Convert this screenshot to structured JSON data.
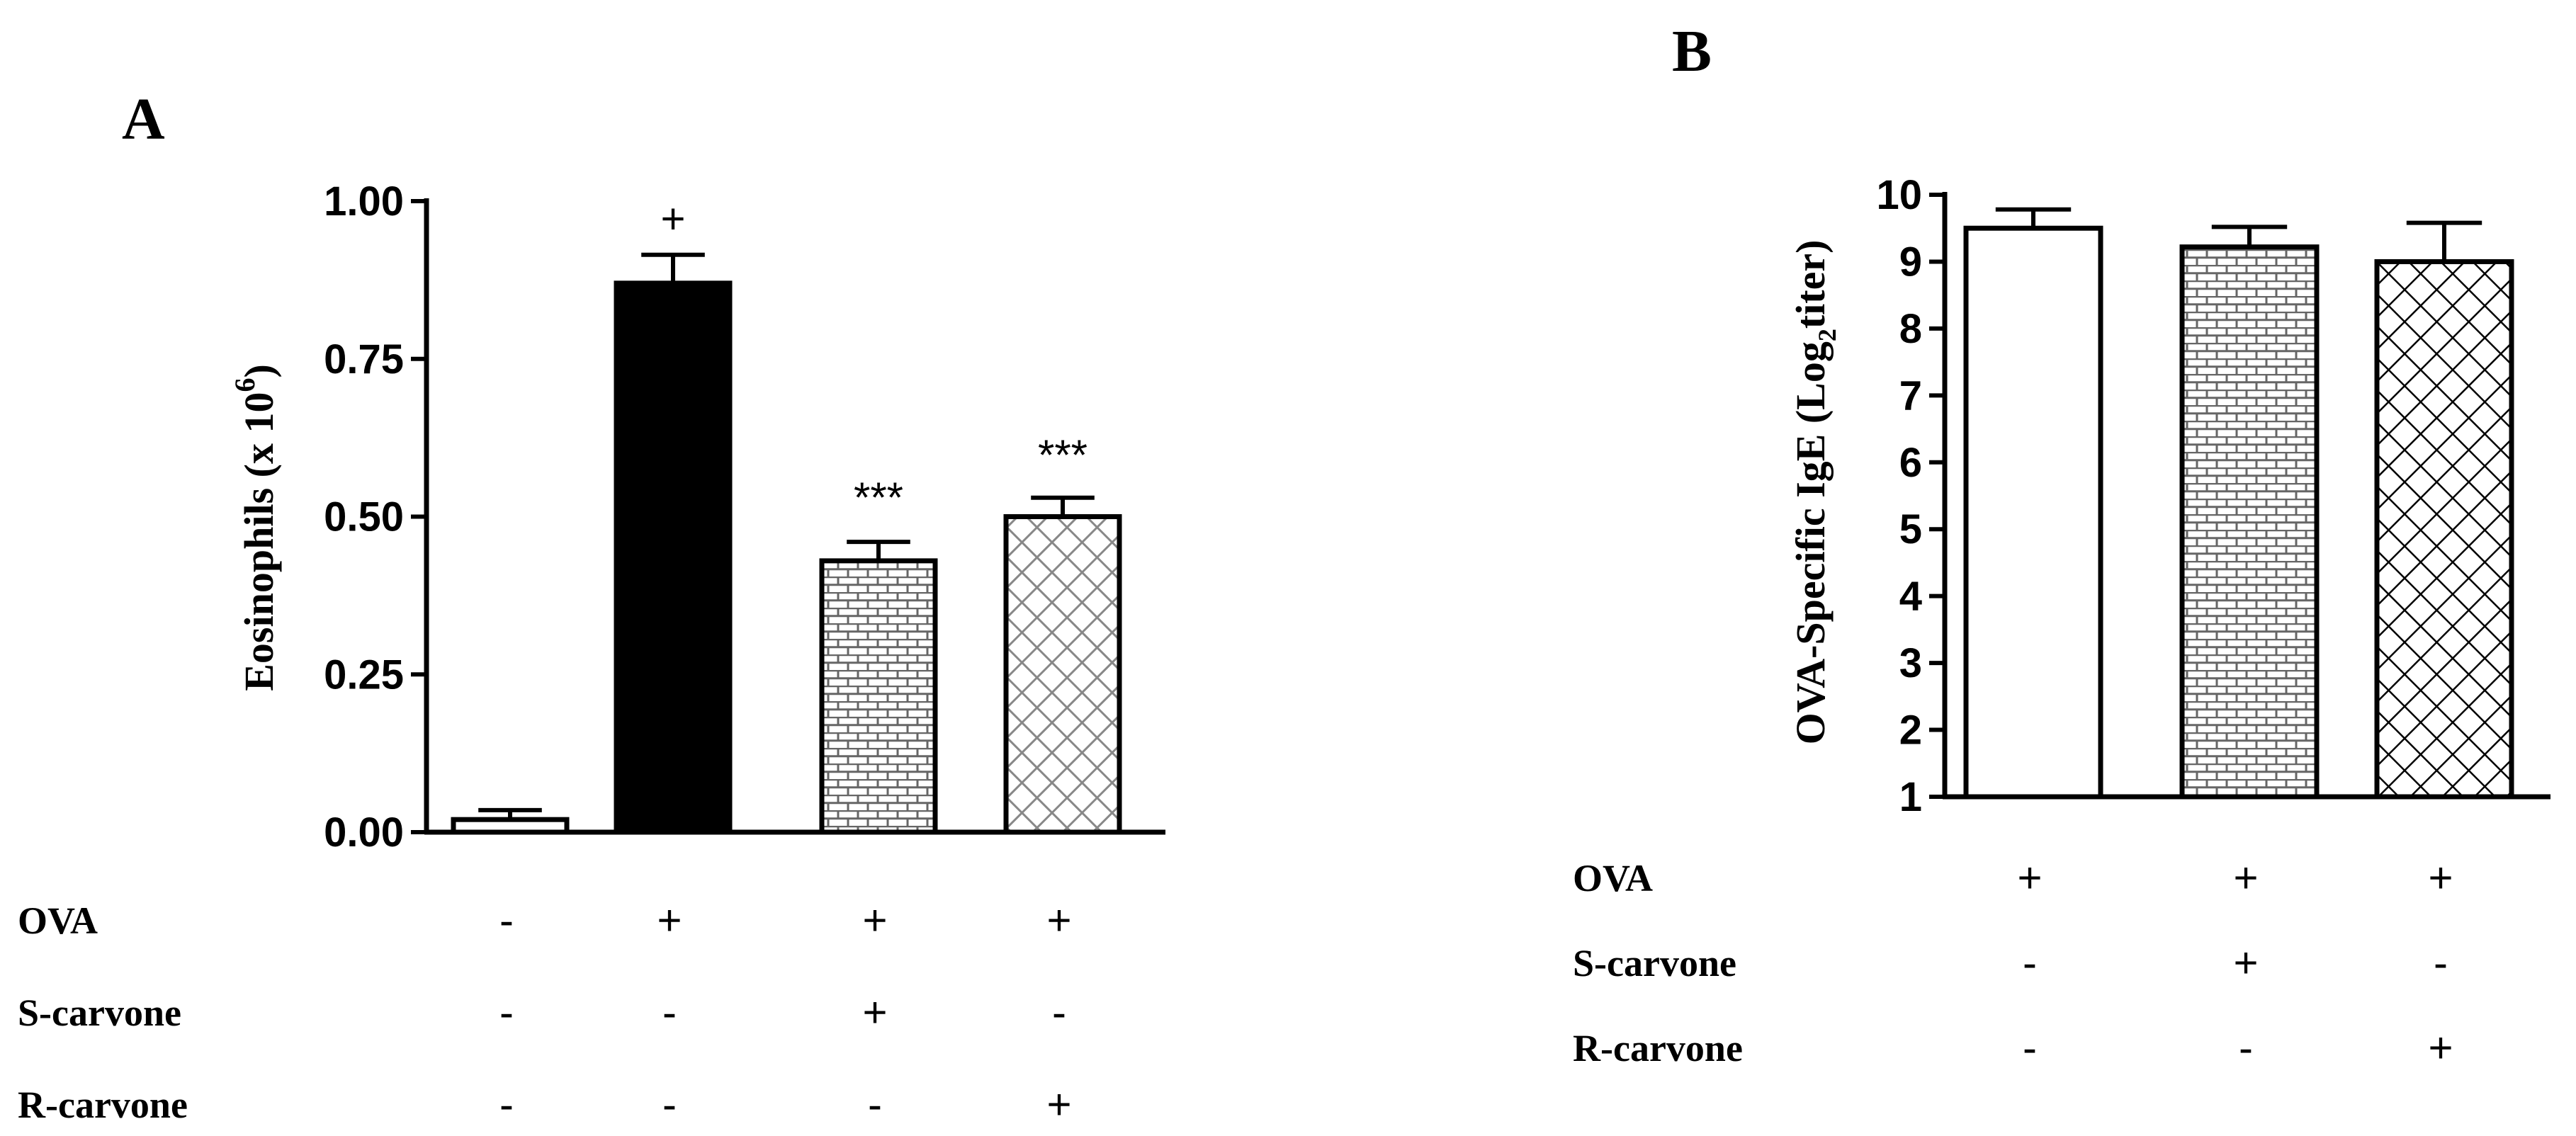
{
  "chart_data": [
    {
      "panel": "A",
      "type": "bar",
      "ylabel_main": "Eosinophils (x 10",
      "ylabel_sup": "6",
      "ylabel_close": ")",
      "ylim": [
        0,
        1.0
      ],
      "yticks": [
        0.0,
        0.25,
        0.5,
        0.75,
        1.0
      ],
      "ytick_labels": [
        "0.00",
        "0.25",
        "0.50",
        "0.75",
        "1.00"
      ],
      "bars": [
        {
          "value": 0.02,
          "err": 0.015,
          "pattern": "white",
          "annotation": ""
        },
        {
          "value": 0.87,
          "err": 0.045,
          "pattern": "black",
          "annotation": "+"
        },
        {
          "value": 0.43,
          "err": 0.03,
          "pattern": "brick",
          "annotation": "***"
        },
        {
          "value": 0.5,
          "err": 0.03,
          "pattern": "lightcross",
          "annotation": "***"
        }
      ],
      "treatments": [
        {
          "label": "OVA",
          "signs": [
            "-",
            "+",
            "+",
            "+"
          ]
        },
        {
          "label": "S-carvone",
          "signs": [
            "-",
            "-",
            "+",
            "-"
          ]
        },
        {
          "label": "R-carvone",
          "signs": [
            "-",
            "-",
            "-",
            "+"
          ]
        }
      ]
    },
    {
      "panel": "B",
      "type": "bar",
      "ylabel_main": "OVA-Specific IgE (Log",
      "ylabel_sub": "2",
      "ylabel_close": "titer)",
      "ylim": [
        1,
        10
      ],
      "yticks": [
        1,
        2,
        3,
        4,
        5,
        6,
        7,
        8,
        9,
        10
      ],
      "ytick_labels": [
        "1",
        "2",
        "3",
        "4",
        "5",
        "6",
        "7",
        "8",
        "9",
        "10"
      ],
      "bars": [
        {
          "value": 9.5,
          "err": 0.28,
          "pattern": "white",
          "annotation": ""
        },
        {
          "value": 9.22,
          "err": 0.3,
          "pattern": "brick",
          "annotation": ""
        },
        {
          "value": 9.0,
          "err": 0.58,
          "pattern": "crosshatch",
          "annotation": ""
        }
      ],
      "treatments": [
        {
          "label": "OVA",
          "signs": [
            "+",
            "+",
            "+"
          ]
        },
        {
          "label": "S-carvone",
          "signs": [
            "-",
            "+",
            "-"
          ]
        },
        {
          "label": "R-carvone",
          "signs": [
            "-",
            "-",
            "+"
          ]
        }
      ]
    }
  ]
}
